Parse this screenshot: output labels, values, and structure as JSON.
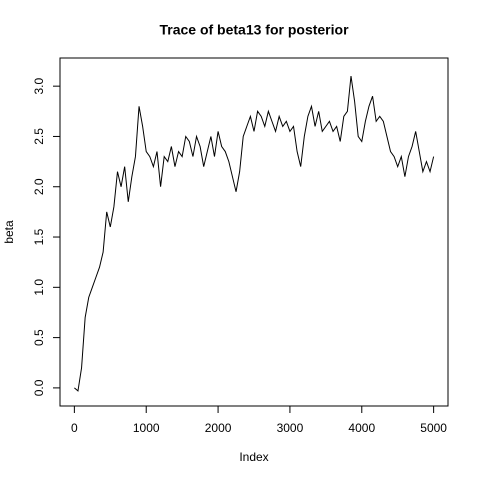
{
  "chart_data": {
    "type": "line",
    "title": "Trace of beta13 for posterior",
    "xlabel": "Index",
    "ylabel": "beta",
    "color": "#000000",
    "xlim": [
      -200,
      5200
    ],
    "ylim": [
      -0.18,
      3.28
    ],
    "xticks": [
      0,
      1000,
      2000,
      3000,
      4000,
      5000
    ],
    "yticks": [
      {
        "value": 0,
        "label": "0.0"
      },
      {
        "value": 0.5,
        "label": "0.5"
      },
      {
        "value": 1,
        "label": "1.0"
      },
      {
        "value": 1.5,
        "label": "1.5"
      },
      {
        "value": 2,
        "label": "2.0"
      },
      {
        "value": 2.5,
        "label": "2.5"
      },
      {
        "value": 3,
        "label": "3.0"
      }
    ],
    "x": [
      0,
      50,
      100,
      150,
      200,
      250,
      300,
      350,
      400,
      450,
      500,
      550,
      600,
      650,
      700,
      750,
      800,
      850,
      900,
      950,
      1000,
      1050,
      1100,
      1150,
      1200,
      1250,
      1300,
      1350,
      1400,
      1450,
      1500,
      1550,
      1600,
      1650,
      1700,
      1750,
      1800,
      1850,
      1900,
      1950,
      2000,
      2050,
      2100,
      2150,
      2200,
      2250,
      2300,
      2350,
      2400,
      2450,
      2500,
      2550,
      2600,
      2650,
      2700,
      2750,
      2800,
      2850,
      2900,
      2950,
      3000,
      3050,
      3100,
      3150,
      3200,
      3250,
      3300,
      3350,
      3400,
      3450,
      3500,
      3550,
      3600,
      3650,
      3700,
      3750,
      3800,
      3850,
      3900,
      3950,
      4000,
      4050,
      4100,
      4150,
      4200,
      4250,
      4300,
      4350,
      4400,
      4450,
      4500,
      4550,
      4600,
      4650,
      4700,
      4750,
      4800,
      4850,
      4900,
      4950,
      5000
    ],
    "values": [
      0.0,
      -0.03,
      0.2,
      0.7,
      0.9,
      1.0,
      1.1,
      1.2,
      1.35,
      1.75,
      1.6,
      1.8,
      2.15,
      2.0,
      2.2,
      1.85,
      2.1,
      2.3,
      2.8,
      2.6,
      2.35,
      2.3,
      2.2,
      2.35,
      2.0,
      2.3,
      2.25,
      2.4,
      2.2,
      2.35,
      2.3,
      2.5,
      2.45,
      2.3,
      2.5,
      2.4,
      2.2,
      2.35,
      2.5,
      2.3,
      2.55,
      2.4,
      2.35,
      2.25,
      2.1,
      1.95,
      2.15,
      2.5,
      2.6,
      2.7,
      2.55,
      2.75,
      2.7,
      2.6,
      2.75,
      2.65,
      2.55,
      2.7,
      2.6,
      2.65,
      2.55,
      2.6,
      2.35,
      2.2,
      2.5,
      2.7,
      2.8,
      2.6,
      2.75,
      2.55,
      2.6,
      2.65,
      2.55,
      2.6,
      2.45,
      2.7,
      2.75,
      3.1,
      2.85,
      2.5,
      2.45,
      2.65,
      2.8,
      2.9,
      2.65,
      2.7,
      2.65,
      2.5,
      2.35,
      2.3,
      2.2,
      2.3,
      2.1,
      2.3,
      2.4,
      2.55,
      2.35,
      2.15,
      2.25,
      2.15,
      2.3
    ]
  }
}
